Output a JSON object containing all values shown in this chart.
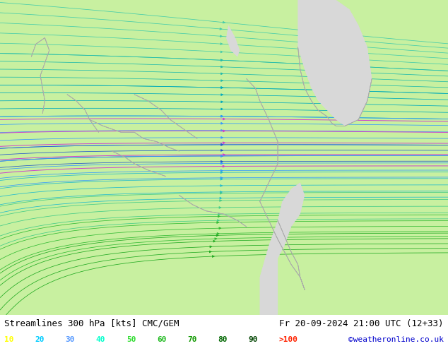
{
  "title_left": "Streamlines 300 hPa [kts] CMC/GEM",
  "title_right": "Fr 20-09-2024 21:00 UTC (12+33)",
  "credit": "©weatheronline.co.uk",
  "legend_values": [
    "10",
    "20",
    "30",
    "40",
    "50",
    "60",
    "70",
    "80",
    "90",
    ">100"
  ],
  "legend_colors": [
    "#ffff00",
    "#00ccff",
    "#5599ff",
    "#00ffcc",
    "#33dd33",
    "#22bb22",
    "#119900",
    "#006600",
    "#004400",
    "#ff2200"
  ],
  "bg_color": "#c8f0a0",
  "gray_color": "#d8d8d8",
  "border_color": "#aaaaaa",
  "figsize": [
    6.34,
    4.9
  ],
  "dpi": 100,
  "text_color_title": "#000000",
  "text_color_credit": "#0000cc",
  "bottom_bar_color": "#ffffff",
  "font_size_title": 9,
  "font_size_legend": 8,
  "font_size_credit": 8,
  "stream_colors": {
    "purple": "#cc44cc",
    "blue_dark": "#2233cc",
    "blue_mid": "#3399ff",
    "cyan": "#00cccc",
    "teal": "#00cc88",
    "green_light": "#66dd22",
    "green_mid": "#22bb22",
    "green_dark": "#116600"
  }
}
